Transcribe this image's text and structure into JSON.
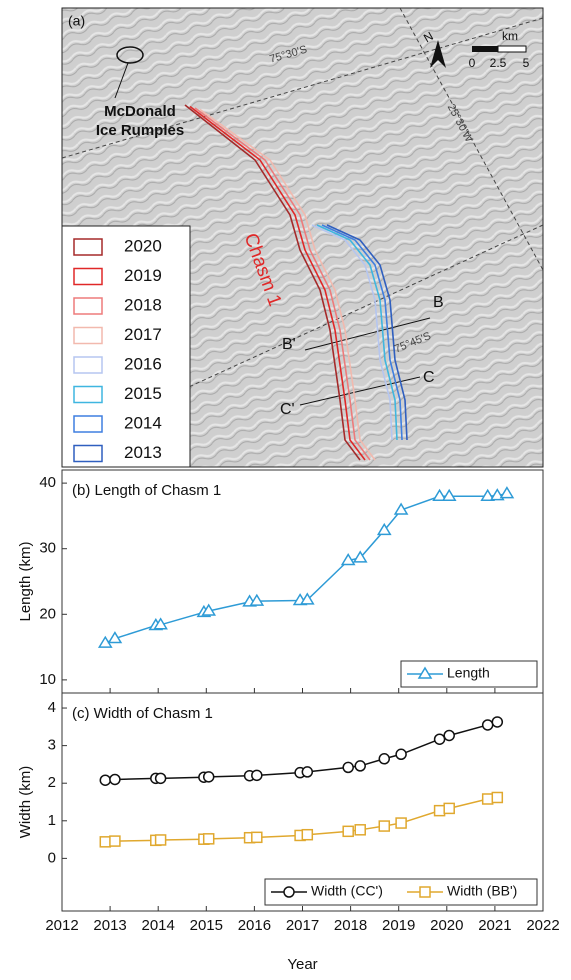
{
  "map": {
    "panel_label": "(a)",
    "feature_label": [
      "McDonald",
      "Ice Rumples"
    ],
    "lat_label_1": "75°30'S",
    "lat_label_2": "75°45'S",
    "lon_label": "25°30'W",
    "north": "N",
    "scale_unit": "km",
    "scale_ticks": [
      "0",
      "2.5",
      "5"
    ],
    "chasm_label": "Chasm 1",
    "profile_labels": [
      "B",
      "B'",
      "C",
      "C'"
    ],
    "legend": [
      {
        "name": "2020",
        "color": "#a52a2a"
      },
      {
        "name": "2019",
        "color": "#e02828"
      },
      {
        "name": "2018",
        "color": "#ee7b7b"
      },
      {
        "name": "2017",
        "color": "#f2b9ae"
      },
      {
        "name": "2016",
        "color": "#b5c6f0"
      },
      {
        "name": "2015",
        "color": "#3fb6e0"
      },
      {
        "name": "2014",
        "color": "#3f7fe0"
      },
      {
        "name": "2013",
        "color": "#2f5fbf"
      }
    ]
  },
  "chart_data": [
    {
      "type": "line",
      "title": "(b) Length of Chasm 1",
      "y_label": "Length (km)",
      "ylim": [
        8,
        42
      ],
      "yticks": [
        10,
        20,
        30,
        40
      ],
      "xlim": [
        2012,
        2022
      ],
      "legend": "bottom-right",
      "x": [
        2012.9,
        2013.1,
        2013.95,
        2014.05,
        2014.95,
        2015.05,
        2015.9,
        2016.05,
        2016.95,
        2017.1,
        2017.95,
        2018.2,
        2018.7,
        2019.05,
        2019.85,
        2020.05,
        2020.85,
        2021.05,
        2021.25
      ],
      "series": [
        {
          "name": "Length",
          "color": "#2e9bd6",
          "marker": "triangle",
          "values": [
            15.6,
            16.3,
            18.3,
            18.4,
            20.3,
            20.5,
            21.9,
            22.0,
            22.1,
            22.2,
            28.2,
            28.6,
            32.8,
            35.9,
            38.0,
            38.0,
            38.0,
            38.1,
            38.4
          ]
        }
      ]
    },
    {
      "type": "line",
      "title": "(c) Width of Chasm 1",
      "y_label": "Width (km)",
      "x_label": "Year",
      "ylim": [
        -1.4,
        4.4
      ],
      "yticks": [
        0,
        1,
        2,
        3,
        4
      ],
      "xlim": [
        2012,
        2022
      ],
      "xticks": [
        2012,
        2013,
        2014,
        2015,
        2016,
        2017,
        2018,
        2019,
        2020,
        2021,
        2022
      ],
      "legend": "bottom-right",
      "x": [
        2012.9,
        2013.1,
        2013.95,
        2014.05,
        2014.95,
        2015.05,
        2015.9,
        2016.05,
        2016.95,
        2017.1,
        2017.95,
        2018.2,
        2018.7,
        2019.05,
        2019.85,
        2020.05,
        2020.85,
        2021.05
      ],
      "series": [
        {
          "name": "Width (CC')",
          "color": "#111111",
          "marker": "circle",
          "values": [
            2.08,
            2.1,
            2.13,
            2.13,
            2.16,
            2.17,
            2.2,
            2.21,
            2.28,
            2.3,
            2.42,
            2.46,
            2.65,
            2.77,
            3.17,
            3.27,
            3.55,
            3.63
          ]
        },
        {
          "name": "Width (BB')",
          "color": "#e0a82e",
          "marker": "square",
          "values": [
            0.44,
            0.46,
            0.48,
            0.49,
            0.51,
            0.52,
            0.55,
            0.56,
            0.61,
            0.63,
            0.72,
            0.76,
            0.86,
            0.94,
            1.27,
            1.33,
            1.58,
            1.62
          ]
        }
      ]
    }
  ]
}
